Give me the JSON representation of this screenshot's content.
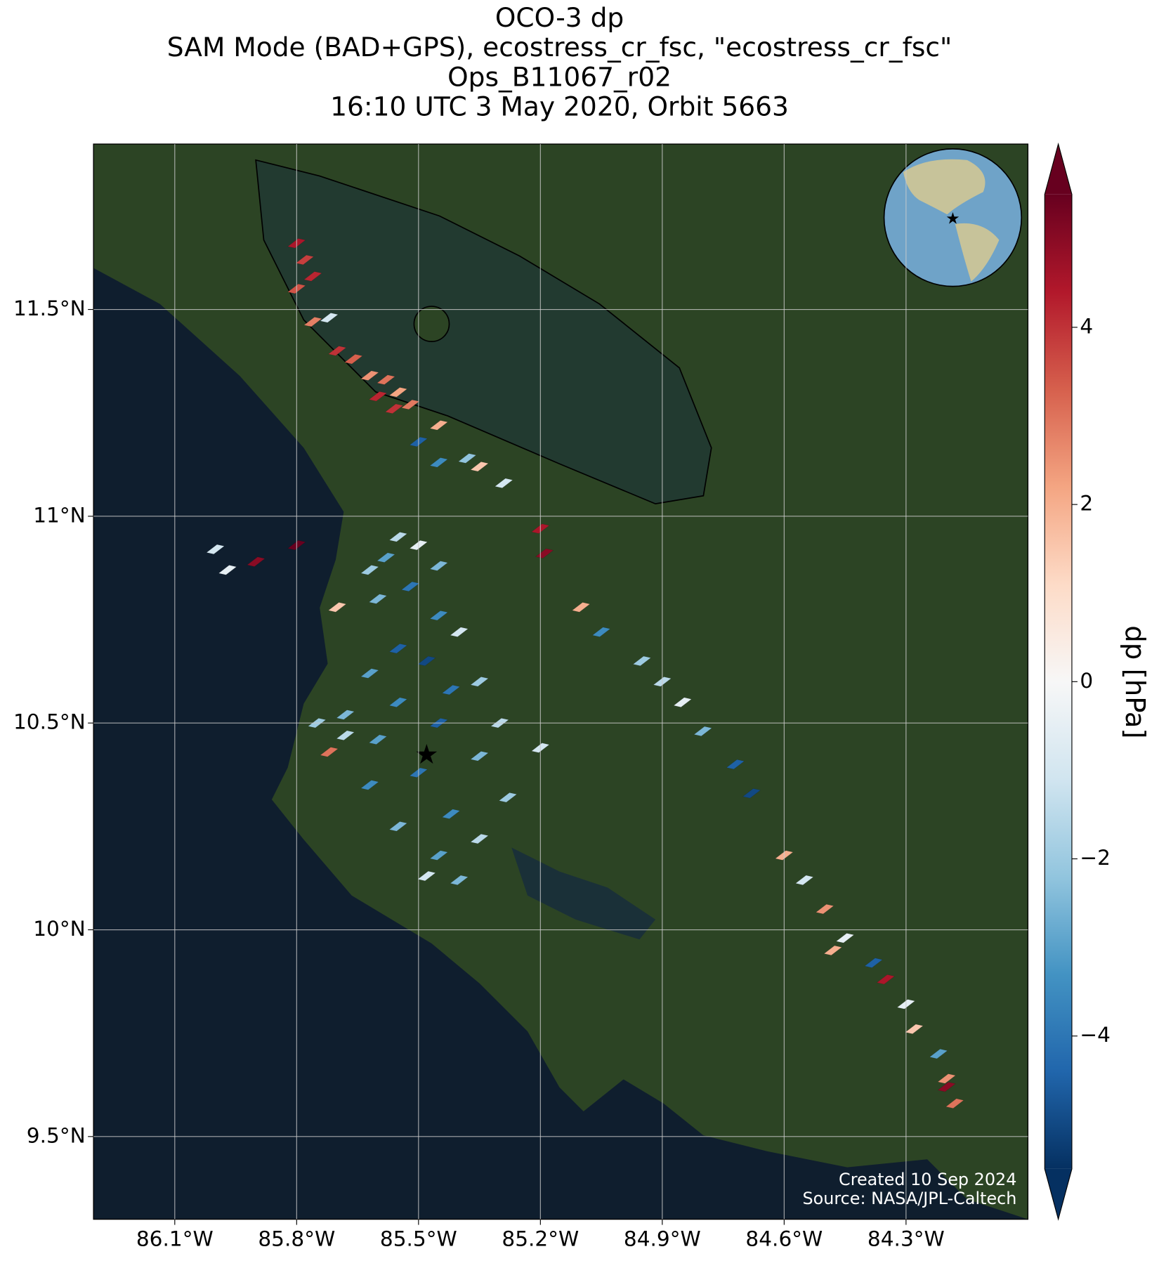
{
  "chart_data": {
    "type": "footprint-map",
    "title": [
      "OCO-3 dp",
      "SAM Mode (BAD+GPS), ecostress_cr_fsc, \"ecostress_cr_fsc\"",
      "Ops_B11067_r02",
      "16:10 UTC 3 May 2020, Orbit 5663"
    ],
    "xlim": [
      -86.3,
      -84.0
    ],
    "ylim": [
      9.3,
      11.9
    ],
    "xticks": [
      {
        "value": -86.1,
        "label": "86.1°W"
      },
      {
        "value": -85.8,
        "label": "85.8°W"
      },
      {
        "value": -85.5,
        "label": "85.5°W"
      },
      {
        "value": -85.2,
        "label": "85.2°W"
      },
      {
        "value": -84.9,
        "label": "84.9°W"
      },
      {
        "value": -84.6,
        "label": "84.6°W"
      },
      {
        "value": -84.3,
        "label": "84.3°W"
      }
    ],
    "yticks": [
      {
        "value": 11.5,
        "label": "11.5°N"
      },
      {
        "value": 11,
        "label": "11°N"
      },
      {
        "value": 10.5,
        "label": "10.5°N"
      },
      {
        "value": 10,
        "label": "10°N"
      },
      {
        "value": 9.5,
        "label": "9.5°N"
      }
    ],
    "grid": true,
    "colorbar_label": "dp [hPa]",
    "clim": [
      -5.5,
      5.5
    ],
    "cticks": [
      {
        "value": -4,
        "label": "−4"
      },
      {
        "value": -2,
        "label": "−2"
      },
      0,
      2,
      4
    ],
    "colormap": [
      "#053061",
      "#2166ac",
      "#4393c3",
      "#92c5de",
      "#d1e5f0",
      "#f7f7f7",
      "#fddbc7",
      "#f4a582",
      "#d6604d",
      "#b2182b",
      "#67001f"
    ],
    "x": [
      -85.8,
      -85.78,
      -85.76,
      -85.8,
      -85.76,
      -85.72,
      -85.7,
      -85.66,
      -85.62,
      -85.58,
      -85.6,
      -85.55,
      -85.52,
      -85.56,
      -85.45,
      -85.5,
      -85.45,
      -85.38,
      -85.35,
      -85.29,
      -85.2,
      -85.19,
      -86.0,
      -85.97,
      -85.9,
      -85.8,
      -85.55,
      -85.5,
      -85.58,
      -85.62,
      -85.45,
      -85.52,
      -85.6,
      -85.7,
      -85.45,
      -85.4,
      -85.55,
      -85.48,
      -85.62,
      -85.35,
      -85.42,
      -85.55,
      -85.68,
      -85.3,
      -85.45,
      -85.6,
      -85.72,
      -85.2,
      -85.35,
      -85.5,
      -85.62,
      -85.28,
      -85.42,
      -85.55,
      -85.35,
      -85.45,
      -85.48,
      -85.4,
      -85.68,
      -85.75,
      -85.1,
      -85.05,
      -84.95,
      -84.9,
      -84.85,
      -84.8,
      -84.72,
      -84.68,
      -84.6,
      -84.55,
      -84.5,
      -84.45,
      -84.48,
      -84.38,
      -84.35,
      -84.3,
      -84.28,
      -84.22,
      -84.2,
      -84.18,
      -84.2
    ],
    "y": [
      11.66,
      11.62,
      11.58,
      11.55,
      11.47,
      11.48,
      11.4,
      11.38,
      11.34,
      11.33,
      11.29,
      11.3,
      11.27,
      11.26,
      11.22,
      11.18,
      11.13,
      11.14,
      11.12,
      11.08,
      10.97,
      10.91,
      10.92,
      10.87,
      10.89,
      10.93,
      10.95,
      10.93,
      10.9,
      10.87,
      10.88,
      10.83,
      10.8,
      10.78,
      10.76,
      10.72,
      10.68,
      10.65,
      10.62,
      10.6,
      10.58,
      10.55,
      10.52,
      10.5,
      10.5,
      10.46,
      10.43,
      10.44,
      10.42,
      10.38,
      10.35,
      10.32,
      10.28,
      10.25,
      10.22,
      10.18,
      10.13,
      10.12,
      10.47,
      10.5,
      10.78,
      10.72,
      10.65,
      10.6,
      10.55,
      10.48,
      10.4,
      10.33,
      10.18,
      10.12,
      10.05,
      9.98,
      9.95,
      9.92,
      9.88,
      9.82,
      9.76,
      9.7,
      9.64,
      9.58,
      9.62
    ],
    "values": [
      4.5,
      3.8,
      4.2,
      3.5,
      2.8,
      -1.0,
      4.0,
      3.3,
      2.5,
      3.0,
      4.2,
      2.2,
      2.9,
      4.0,
      2.0,
      -4.5,
      -3.5,
      -2.2,
      1.5,
      -1.0,
      4.5,
      5.0,
      -1.0,
      -0.5,
      5.0,
      5.5,
      -1.5,
      -0.5,
      -3.0,
      -2.0,
      -2.5,
      -4.0,
      -2.5,
      1.5,
      -3.5,
      -1.0,
      -4.5,
      -5.0,
      -3.0,
      -2.0,
      -4.0,
      -3.5,
      -2.5,
      -1.5,
      -4.5,
      -3.0,
      3.0,
      -1.0,
      -2.5,
      -4.0,
      -3.5,
      -2.0,
      -3.5,
      -2.5,
      -1.5,
      -3.0,
      -1.0,
      -2.5,
      -1.5,
      -2.0,
      2.0,
      -3.5,
      -2.0,
      -1.5,
      -0.5,
      -2.5,
      -4.5,
      -5.0,
      2.0,
      -1.0,
      2.5,
      -0.5,
      2.0,
      -4.5,
      4.5,
      -0.5,
      1.5,
      -3.0,
      2.5,
      3.0,
      5.0
    ],
    "target": {
      "x": -85.48,
      "y": 10.42,
      "color": "#ff0000"
    },
    "credits": [
      "Created 10 Sep 2024",
      "Source: NASA/JPL-Caltech"
    ]
  }
}
